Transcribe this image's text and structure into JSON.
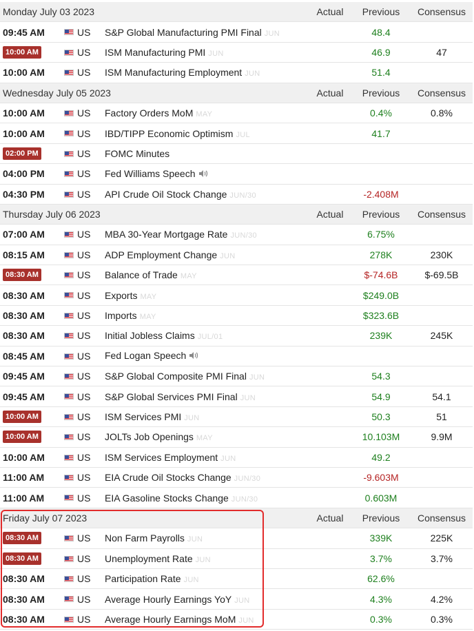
{
  "headers": {
    "actual": "Actual",
    "previous": "Previous",
    "consensus": "Consensus"
  },
  "days": [
    {
      "date": "Monday July 03 2023",
      "events": [
        {
          "time": "09:45 AM",
          "highlight": false,
          "country": "US",
          "name": "S&P Global Manufacturing PMI Final",
          "period": "JUN",
          "speaker": false,
          "previous": "48.4",
          "prev_color": "green",
          "consensus": ""
        },
        {
          "time": "10:00 AM",
          "highlight": true,
          "country": "US",
          "name": "ISM Manufacturing PMI",
          "period": "JUN",
          "speaker": false,
          "previous": "46.9",
          "prev_color": "green",
          "consensus": "47"
        },
        {
          "time": "10:00 AM",
          "highlight": false,
          "country": "US",
          "name": "ISM Manufacturing Employment",
          "period": "JUN",
          "speaker": false,
          "previous": "51.4",
          "prev_color": "green",
          "consensus": ""
        }
      ]
    },
    {
      "date": "Wednesday July 05 2023",
      "events": [
        {
          "time": "10:00 AM",
          "highlight": false,
          "country": "US",
          "name": "Factory Orders MoM",
          "period": "MAY",
          "speaker": false,
          "previous": "0.4%",
          "prev_color": "green",
          "consensus": "0.8%"
        },
        {
          "time": "10:00 AM",
          "highlight": false,
          "country": "US",
          "name": "IBD/TIPP Economic Optimism",
          "period": "JUL",
          "speaker": false,
          "previous": "41.7",
          "prev_color": "green",
          "consensus": ""
        },
        {
          "time": "02:00 PM",
          "highlight": true,
          "country": "US",
          "name": "FOMC Minutes",
          "period": "",
          "speaker": false,
          "previous": "",
          "prev_color": "green",
          "consensus": ""
        },
        {
          "time": "04:00 PM",
          "highlight": false,
          "country": "US",
          "name": "Fed Williams Speech",
          "period": "",
          "speaker": true,
          "previous": "",
          "prev_color": "green",
          "consensus": ""
        },
        {
          "time": "04:30 PM",
          "highlight": false,
          "country": "US",
          "name": "API Crude Oil Stock Change",
          "period": "JUN/30",
          "speaker": false,
          "previous": "-2.408M",
          "prev_color": "red",
          "consensus": ""
        }
      ]
    },
    {
      "date": "Thursday July 06 2023",
      "events": [
        {
          "time": "07:00 AM",
          "highlight": false,
          "country": "US",
          "name": "MBA 30-Year Mortgage Rate",
          "period": "JUN/30",
          "speaker": false,
          "previous": "6.75%",
          "prev_color": "green",
          "consensus": ""
        },
        {
          "time": "08:15 AM",
          "highlight": false,
          "country": "US",
          "name": "ADP Employment Change",
          "period": "JUN",
          "speaker": false,
          "previous": "278K",
          "prev_color": "green",
          "consensus": "230K"
        },
        {
          "time": "08:30 AM",
          "highlight": true,
          "country": "US",
          "name": "Balance of Trade",
          "period": "MAY",
          "speaker": false,
          "previous": "$-74.6B",
          "prev_color": "red",
          "consensus": "$-69.5B"
        },
        {
          "time": "08:30 AM",
          "highlight": false,
          "country": "US",
          "name": "Exports",
          "period": "MAY",
          "speaker": false,
          "previous": "$249.0B",
          "prev_color": "green",
          "consensus": ""
        },
        {
          "time": "08:30 AM",
          "highlight": false,
          "country": "US",
          "name": "Imports",
          "period": "MAY",
          "speaker": false,
          "previous": "$323.6B",
          "prev_color": "green",
          "consensus": ""
        },
        {
          "time": "08:30 AM",
          "highlight": false,
          "country": "US",
          "name": "Initial Jobless Claims",
          "period": "JUL/01",
          "speaker": false,
          "previous": "239K",
          "prev_color": "green",
          "consensus": "245K"
        },
        {
          "time": "08:45 AM",
          "highlight": false,
          "country": "US",
          "name": "Fed Logan Speech",
          "period": "",
          "speaker": true,
          "previous": "",
          "prev_color": "green",
          "consensus": ""
        },
        {
          "time": "09:45 AM",
          "highlight": false,
          "country": "US",
          "name": "S&P Global Composite PMI Final",
          "period": "JUN",
          "speaker": false,
          "previous": "54.3",
          "prev_color": "green",
          "consensus": ""
        },
        {
          "time": "09:45 AM",
          "highlight": false,
          "country": "US",
          "name": "S&P Global Services PMI Final",
          "period": "JUN",
          "speaker": false,
          "previous": "54.9",
          "prev_color": "green",
          "consensus": "54.1"
        },
        {
          "time": "10:00 AM",
          "highlight": true,
          "country": "US",
          "name": "ISM Services PMI",
          "period": "JUN",
          "speaker": false,
          "previous": "50.3",
          "prev_color": "green",
          "consensus": "51"
        },
        {
          "time": "10:00 AM",
          "highlight": true,
          "country": "US",
          "name": "JOLTs Job Openings",
          "period": "MAY",
          "speaker": false,
          "previous": "10.103M",
          "prev_color": "green",
          "consensus": "9.9M"
        },
        {
          "time": "10:00 AM",
          "highlight": false,
          "country": "US",
          "name": "ISM Services Employment",
          "period": "JUN",
          "speaker": false,
          "previous": "49.2",
          "prev_color": "green",
          "consensus": ""
        },
        {
          "time": "11:00 AM",
          "highlight": false,
          "country": "US",
          "name": "EIA Crude Oil Stocks Change",
          "period": "JUN/30",
          "speaker": false,
          "previous": "-9.603M",
          "prev_color": "red",
          "consensus": ""
        },
        {
          "time": "11:00 AM",
          "highlight": false,
          "country": "US",
          "name": "EIA Gasoline Stocks Change",
          "period": "JUN/30",
          "speaker": false,
          "previous": "0.603M",
          "prev_color": "green",
          "consensus": ""
        }
      ]
    },
    {
      "date": "Friday July 07 2023",
      "events": [
        {
          "time": "08:30 AM",
          "highlight": true,
          "country": "US",
          "name": "Non Farm Payrolls",
          "period": "JUN",
          "speaker": false,
          "previous": "339K",
          "prev_color": "green",
          "consensus": "225K"
        },
        {
          "time": "08:30 AM",
          "highlight": true,
          "country": "US",
          "name": "Unemployment Rate",
          "period": "JUN",
          "speaker": false,
          "previous": "3.7%",
          "prev_color": "green",
          "consensus": "3.7%"
        },
        {
          "time": "08:30 AM",
          "highlight": false,
          "country": "US",
          "name": "Participation Rate",
          "period": "JUN",
          "speaker": false,
          "previous": "62.6%",
          "prev_color": "green",
          "consensus": ""
        },
        {
          "time": "08:30 AM",
          "highlight": false,
          "country": "US",
          "name": "Average Hourly Earnings YoY",
          "period": "JUN",
          "speaker": false,
          "previous": "4.3%",
          "prev_color": "green",
          "consensus": "4.2%"
        },
        {
          "time": "08:30 AM",
          "highlight": false,
          "country": "US",
          "name": "Average Hourly Earnings MoM",
          "period": "JUN",
          "speaker": false,
          "previous": "0.3%",
          "prev_color": "green",
          "consensus": "0.3%"
        }
      ]
    }
  ],
  "colors": {
    "time_highlight": "#a8312c",
    "previous_positive": "#1d7f1d",
    "previous_negative": "#b52424",
    "annotation_box": "#e22b2b",
    "day_row_bg": "#f0f0f0"
  }
}
